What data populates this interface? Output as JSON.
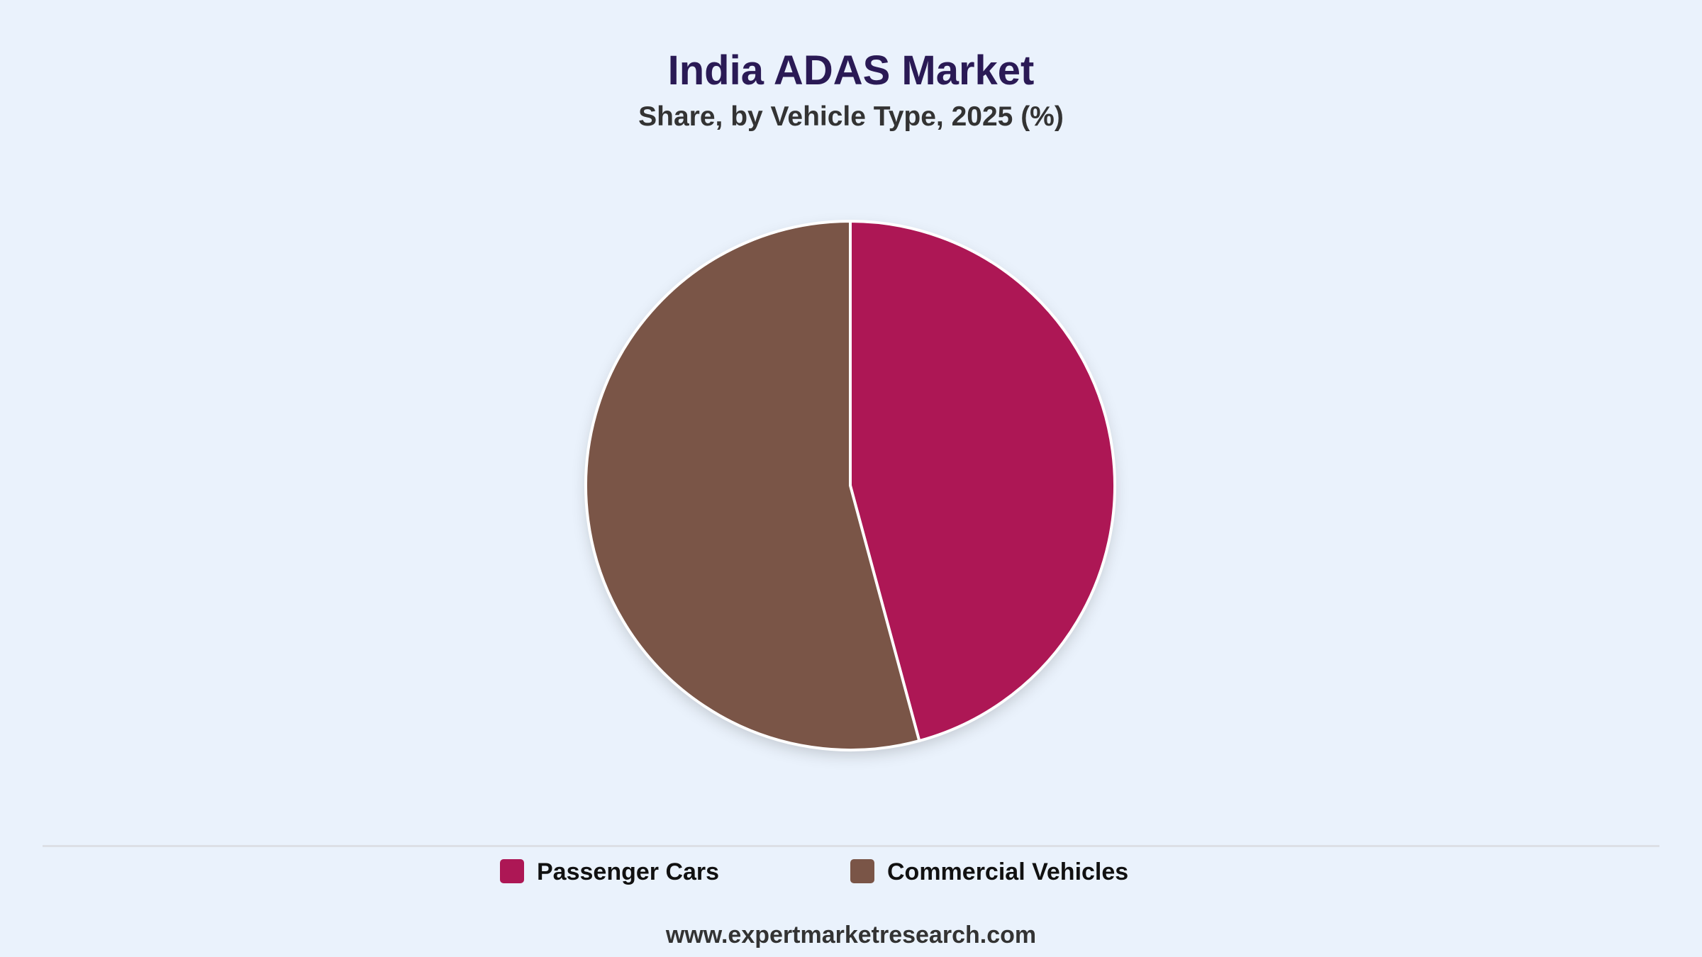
{
  "chart_data": {
    "type": "pie",
    "title": "India ADAS Market",
    "subtitle": "Share, by Vehicle Type, 2025 (%)",
    "slices": [
      {
        "label": "Passenger Cars",
        "value": 45.8,
        "color": "#AD1755"
      },
      {
        "label": "Commercial Vehicles",
        "value": 54.2,
        "color": "#7A5547"
      }
    ],
    "start_angle": "12 o'clock",
    "direction": "clockwise",
    "legend": {
      "placement": "bottom-center"
    }
  },
  "footer": {
    "text": "www.expertmarketresearch.com"
  }
}
